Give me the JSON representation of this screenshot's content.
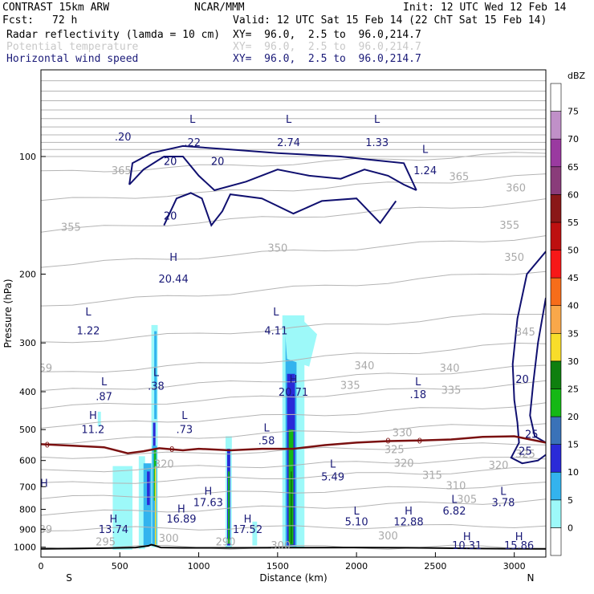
{
  "header": {
    "model": "CONTRAST 15km ARW",
    "center": "NCAR/MMM",
    "init": "Init: 12 UTC Wed 12 Feb 14",
    "fcst_label": "Fcst:",
    "fcst_value": "72 h",
    "valid": "Valid: 12 UTC Sat 15 Feb 14 (22 ChT Sat 15 Feb 14)",
    "fields": [
      {
        "name": "Radar reflectivity (lamda = 10 cm)",
        "xy": "XY=  96.0,  2.5 to  96.0,214.7"
      },
      {
        "name": "Potential temperature",
        "xy": "XY=  96.0,  2.5 to  96.0,214.7"
      },
      {
        "name": "Horizontal wind speed",
        "xy": "XY=  96.0,  2.5 to  96.0,214.7"
      }
    ]
  },
  "colors": {
    "theta_contour": "#b4b4b4",
    "wind_contour": "#101070",
    "freezing_line": "#7a1010",
    "terrain": "#000000",
    "label_text": "#1a1a78"
  },
  "chart_data": {
    "type": "cross-section",
    "xlabel": "Distance (km)",
    "ylabel": "Pressure (hPa)",
    "xlim": [
      0,
      3200
    ],
    "ylim": [
      1060,
      60
    ],
    "y_scale": "log",
    "x_ticks": [
      0,
      500,
      1000,
      1500,
      2000,
      2500,
      3000
    ],
    "y_ticks": [
      100,
      200,
      300,
      400,
      500,
      600,
      700,
      800,
      900,
      1000
    ],
    "x_end_labels": {
      "left": "S",
      "right": "N"
    },
    "colorbar": {
      "unit": "dBZ",
      "levels": [
        0,
        5,
        10,
        15,
        20,
        25,
        30,
        35,
        40,
        45,
        50,
        55,
        60,
        65,
        70,
        75
      ],
      "colors": [
        "#ffffff",
        "#9df9f9",
        "#33b3ee",
        "#2a2ad8",
        "#3a72b8",
        "#15b815",
        "#0f7f0f",
        "#f8dd2a",
        "#f9a84a",
        "#f76d1a",
        "#f71818",
        "#bd1010",
        "#8a1818",
        "#8a3c7a",
        "#9a3aa0",
        "#c090c8",
        "#ffffff"
      ]
    },
    "wind_labels": [
      {
        "text": "H",
        "x": 840,
        "y": 185
      },
      {
        "text": "20.44",
        "x": 840,
        "y": 210
      },
      {
        "text": "L",
        "x": 300,
        "y": 255
      },
      {
        "text": "1.22",
        "x": 300,
        "y": 285
      },
      {
        "text": "L",
        "x": 1490,
        "y": 255
      },
      {
        "text": "4.11",
        "x": 1490,
        "y": 285
      },
      {
        "text": "L",
        "x": 1570,
        "y": 82
      },
      {
        "text": "2.74",
        "x": 1570,
        "y": 94
      },
      {
        "text": "L",
        "x": 960,
        "y": 82
      },
      {
        "text": ".22",
        "x": 960,
        "y": 94
      },
      {
        "text": ".20",
        "x": 520,
        "y": 91
      },
      {
        "text": "L",
        "x": 2130,
        "y": 82
      },
      {
        "text": "1.33",
        "x": 2130,
        "y": 94
      },
      {
        "text": "L",
        "x": 2435,
        "y": 98
      },
      {
        "text": "1.24",
        "x": 2435,
        "y": 111
      },
      {
        "text": "L",
        "x": 400,
        "y": 385
      },
      {
        "text": ".87",
        "x": 400,
        "y": 420
      },
      {
        "text": "L",
        "x": 730,
        "y": 365
      },
      {
        "text": ".38",
        "x": 730,
        "y": 395
      },
      {
        "text": "H",
        "x": 1600,
        "y": 380
      },
      {
        "text": "20.71",
        "x": 1600,
        "y": 410
      },
      {
        "text": "L",
        "x": 2390,
        "y": 385
      },
      {
        "text": ".18",
        "x": 2390,
        "y": 415
      },
      {
        "text": "H",
        "x": 330,
        "y": 470
      },
      {
        "text": "11.2",
        "x": 330,
        "y": 510
      },
      {
        "text": "L",
        "x": 910,
        "y": 470
      },
      {
        "text": ".73",
        "x": 910,
        "y": 510
      },
      {
        "text": "L",
        "x": 1430,
        "y": 505
      },
      {
        "text": ".58",
        "x": 1430,
        "y": 545
      },
      {
        "text": "L",
        "x": 1850,
        "y": 625
      },
      {
        "text": "5.49",
        "x": 1850,
        "y": 675
      },
      {
        "text": "H",
        "x": 1060,
        "y": 735
      },
      {
        "text": "17.63",
        "x": 1060,
        "y": 785
      },
      {
        "text": "L",
        "x": 2930,
        "y": 735
      },
      {
        "text": "3.78",
        "x": 2930,
        "y": 785
      },
      {
        "text": "L",
        "x": 2620,
        "y": 770
      },
      {
        "text": "6.82",
        "x": 2620,
        "y": 825
      },
      {
        "text": "H",
        "x": 890,
        "y": 815
      },
      {
        "text": "16.89",
        "x": 890,
        "y": 865
      },
      {
        "text": "H",
        "x": 460,
        "y": 865
      },
      {
        "text": "13.74",
        "x": 460,
        "y": 920
      },
      {
        "text": "H",
        "x": 1310,
        "y": 865
      },
      {
        "text": "17.52",
        "x": 1310,
        "y": 920
      },
      {
        "text": "L",
        "x": 2000,
        "y": 825
      },
      {
        "text": "5.10",
        "x": 2000,
        "y": 880
      },
      {
        "text": "H",
        "x": 2330,
        "y": 825
      },
      {
        "text": "12.88",
        "x": 2330,
        "y": 880
      },
      {
        "text": "H",
        "x": 2700,
        "y": 960
      },
      {
        "text": "10.31",
        "x": 2700,
        "y": 1010
      },
      {
        "text": "H",
        "x": 3030,
        "y": 960
      },
      {
        "text": "15.86",
        "x": 3030,
        "y": 1010
      },
      {
        "text": "H",
        "x": 20,
        "y": 700
      }
    ],
    "wind_contour_labels": [
      {
        "text": "20",
        "x": 820,
        "y": 105
      },
      {
        "text": "20",
        "x": 1120,
        "y": 105
      },
      {
        "text": "20",
        "x": 820,
        "y": 145
      },
      {
        "text": "20",
        "x": 3050,
        "y": 380
      },
      {
        "text": "25",
        "x": 3110,
        "y": 525
      },
      {
        "text": "25",
        "x": 3070,
        "y": 580
      }
    ],
    "theta_labels": [
      {
        "text": "365",
        "x": 510,
        "y": 111
      },
      {
        "text": "365",
        "x": 2650,
        "y": 115
      },
      {
        "text": "360",
        "x": 3010,
        "y": 123
      },
      {
        "text": "355",
        "x": 190,
        "y": 155
      },
      {
        "text": "355",
        "x": 2970,
        "y": 153
      },
      {
        "text": "350",
        "x": 1500,
        "y": 175
      },
      {
        "text": "350",
        "x": 3000,
        "y": 185
      },
      {
        "text": "345",
        "x": 3070,
        "y": 287
      },
      {
        "text": "340",
        "x": 2050,
        "y": 350
      },
      {
        "text": "340",
        "x": 2590,
        "y": 355
      },
      {
        "text": "335",
        "x": 1960,
        "y": 393
      },
      {
        "text": "335",
        "x": 2600,
        "y": 405
      },
      {
        "text": "330",
        "x": 2290,
        "y": 520
      },
      {
        "text": "325",
        "x": 2240,
        "y": 575
      },
      {
        "text": "325",
        "x": 3070,
        "y": 590
      },
      {
        "text": "320",
        "x": 780,
        "y": 625
      },
      {
        "text": "320",
        "x": 2300,
        "y": 622
      },
      {
        "text": "320",
        "x": 2900,
        "y": 630
      },
      {
        "text": "315",
        "x": 2480,
        "y": 668
      },
      {
        "text": "310",
        "x": 2630,
        "y": 710
      },
      {
        "text": "305",
        "x": 2700,
        "y": 770
      },
      {
        "text": "300",
        "x": 2200,
        "y": 955
      },
      {
        "text": "300",
        "x": 810,
        "y": 970
      },
      {
        "text": "300",
        "x": 1520,
        "y": 1010
      },
      {
        "text": "295",
        "x": 410,
        "y": 990
      },
      {
        "text": "290",
        "x": 1170,
        "y": 990
      },
      {
        "text": "59",
        "x": 30,
        "y": 355
      },
      {
        "text": "39",
        "x": 30,
        "y": 920
      }
    ],
    "freezing_labels": [
      {
        "text": "0",
        "x": 40,
        "y": 545
      },
      {
        "text": "0",
        "x": 830,
        "y": 560
      },
      {
        "text": "0",
        "x": 2200,
        "y": 533
      },
      {
        "text": "0",
        "x": 2400,
        "y": 533
      }
    ]
  }
}
